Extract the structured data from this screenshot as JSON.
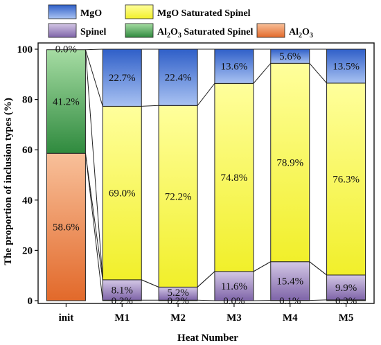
{
  "chart_data": {
    "type": "bar",
    "stacked": true,
    "categories": [
      "init",
      "M1",
      "M2",
      "M3",
      "M4",
      "M5"
    ],
    "xlabel": "Heat Number",
    "ylabel": "The proportion of inclusion types (%)",
    "ylim": [
      0,
      100
    ],
    "yticks": [
      0,
      20,
      40,
      60,
      80,
      100
    ],
    "grid": false,
    "legend_position": "top",
    "series": [
      {
        "key": "al2o3",
        "name": "Al2O3",
        "name_main": "Al",
        "name_sub1": "2",
        "name_mid": "O",
        "name_sub2": "3",
        "name_tail": "",
        "color_top": "#f8c09a",
        "color_bottom": "#e2692a",
        "values": [
          58.6,
          0.2,
          0.2,
          0.0,
          0.1,
          0.3
        ],
        "labels": [
          "58.6%",
          "0.2%",
          "0.2%",
          "0.0%",
          "0.1%",
          "0.3%"
        ]
      },
      {
        "key": "spinel",
        "name": "Spinel",
        "color_top": "#d4c8e6",
        "color_bottom": "#7e64a8",
        "values": [
          0.0,
          8.1,
          5.2,
          11.6,
          15.4,
          9.9
        ],
        "labels": [
          "",
          "8.1%",
          "5.2%",
          "11.6%",
          "15.4%",
          "9.9%"
        ]
      },
      {
        "key": "al2o3_sat",
        "name": "Al2O3 Saturated Spinel",
        "name_main": "Al",
        "name_sub1": "2",
        "name_mid": "O",
        "name_sub2": "3",
        "name_tail": " Saturated Spinel",
        "color_top": "#a6dca3",
        "color_bottom": "#2f8a3e",
        "values": [
          41.2,
          0.0,
          0.0,
          0.0,
          0.0,
          0.0
        ],
        "labels": [
          "41.2%",
          "",
          "",
          "",
          "",
          ""
        ]
      },
      {
        "key": "mgo_sat",
        "name": "MgO Saturated Spinel",
        "color_top": "#ffff9c",
        "color_bottom": "#f1ef2a",
        "values": [
          0.0,
          69.0,
          72.2,
          74.8,
          78.9,
          76.3
        ],
        "labels": [
          "",
          "69.0%",
          "72.2%",
          "74.8%",
          "78.9%",
          "76.3%"
        ]
      },
      {
        "key": "mgo",
        "name": "MgO",
        "color_top": "#2f5fc8",
        "color_bottom": "#a9c2f2",
        "values": [
          0.0,
          22.7,
          22.4,
          13.6,
          5.6,
          13.5
        ],
        "labels": [
          "0.0%",
          "22.7%",
          "22.4%",
          "13.6%",
          "5.6%",
          "13.5%"
        ]
      }
    ],
    "legend": [
      {
        "series": "mgo",
        "row": 0,
        "col": 0
      },
      {
        "series": "mgo_sat",
        "row": 0,
        "col": 1
      },
      {
        "series": "spinel",
        "row": 1,
        "col": 0
      },
      {
        "series": "al2o3_sat",
        "row": 1,
        "col": 1
      },
      {
        "series": "al2o3",
        "row": 1,
        "col": 2
      }
    ]
  }
}
